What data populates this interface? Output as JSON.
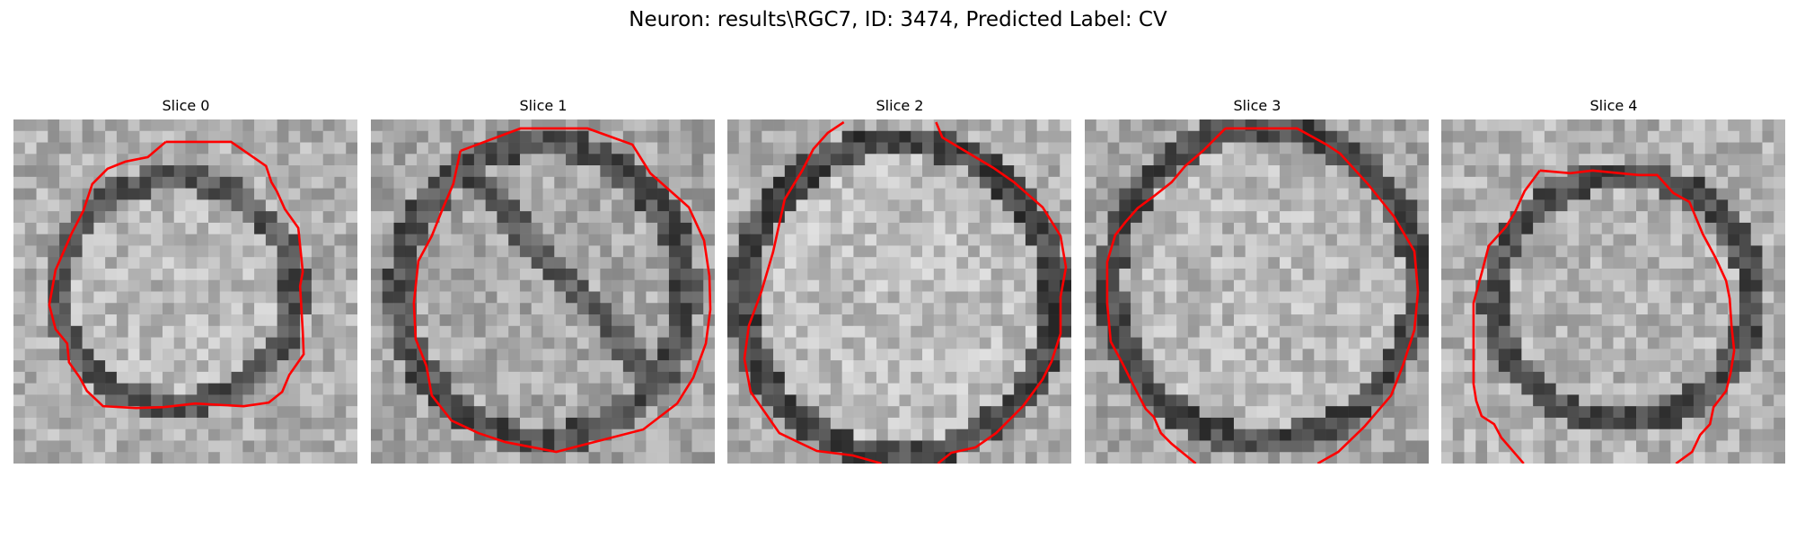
{
  "figure": {
    "suptitle": "Neuron: results\\RGC7, ID: 3474, Predicted Label: CV"
  },
  "panels": [
    {
      "title": "Slice 0"
    },
    {
      "title": "Slice 1"
    },
    {
      "title": "Slice 2"
    },
    {
      "title": "Slice 3"
    },
    {
      "title": "Slice 4"
    }
  ],
  "colors": {
    "contour": "#ff0000",
    "background": "#ffffff"
  },
  "image": {
    "colormap": "grayscale",
    "content": "electron microscopy slices of a neuron nucleus with red segmentation contour"
  }
}
